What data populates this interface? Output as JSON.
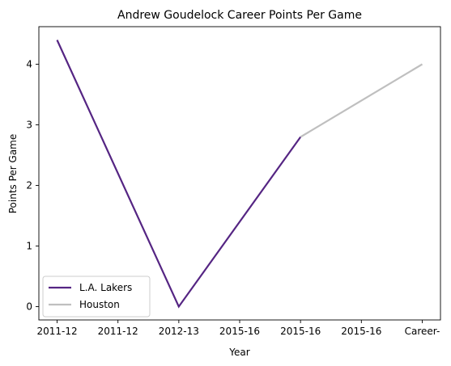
{
  "chart_data": {
    "type": "line",
    "title": "Andrew Goudelock Career Points Per Game",
    "xlabel": "Year",
    "ylabel": "Points Per Game",
    "categories": [
      "2011-12",
      "2011-12",
      "2012-13",
      "2015-16",
      "2015-16",
      "2015-16",
      "Career-"
    ],
    "ylim": [
      -0.22,
      4.62
    ],
    "yticks": [
      0,
      1,
      2,
      3,
      4
    ],
    "grid": false,
    "legend_position": "lower-left",
    "series": [
      {
        "name": "L.A. Lakers",
        "color": "#552583",
        "x": [
          0,
          2,
          4
        ],
        "values": [
          4.4,
          0.0,
          2.8
        ]
      },
      {
        "name": "Houston",
        "color": "#bfbfbf",
        "x": [
          4,
          6
        ],
        "values": [
          2.8,
          4.0
        ]
      }
    ]
  }
}
